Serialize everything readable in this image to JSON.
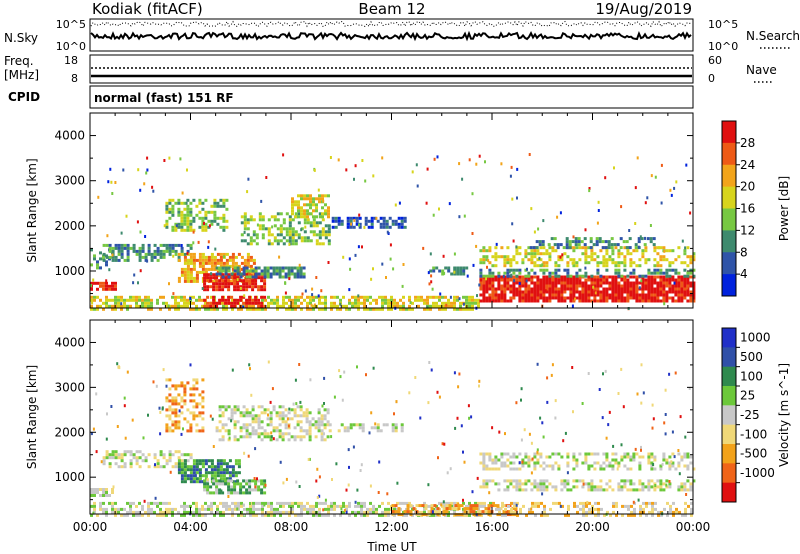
{
  "header": {
    "station": "Kodiak (fitACF)",
    "beam": "Beam 12",
    "date": "19/Aug/2019"
  },
  "strips": {
    "nsky_label": "N.Sky",
    "nsky_ticks": [
      "10^5",
      "10^0"
    ],
    "nsearch_label": "N.Search",
    "nsearch_ticks": [
      "10^5",
      "10^0"
    ],
    "freq_label_line1": "Freq.",
    "freq_label_line2": "[MHz]",
    "freq_ticks": [
      "18",
      "8"
    ],
    "nave_label": "Nave",
    "nave_ticks": [
      "60",
      "0"
    ],
    "cpid_label": "CPID",
    "cpid_text": "normal (fast) 151 RF"
  },
  "chart_data": [
    {
      "type": "heatmap",
      "name": "power",
      "ylabel": "Slant Range [km]",
      "xlabel": "",
      "x_ticks": [
        "00:00",
        "04:00",
        "08:00",
        "12:00",
        "16:00",
        "20:00",
        "00:00"
      ],
      "x_range_hours": [
        0,
        24
      ],
      "ylim": [
        180,
        4500
      ],
      "y_ticks": [
        1000,
        2000,
        3000,
        4000
      ],
      "colorbar_label": "Power [dB]",
      "colorbar_ticks": [
        "28",
        "24",
        "20",
        "16",
        "12",
        "8",
        "4"
      ],
      "colorbar_colors": [
        "#0022dd",
        "#2f54a8",
        "#3e8a6e",
        "#77c842",
        "#d7d41c",
        "#f2a41a",
        "#ee5a16",
        "#e01010"
      ],
      "echo_regions": [
        {
          "t": [
            0.0,
            1.0
          ],
          "r": [
            580,
            760
          ],
          "level": 7,
          "fill": 0.8
        },
        {
          "t": [
            0.0,
            1.0
          ],
          "r": [
            1100,
            1500
          ],
          "level": 2,
          "fill": 0.35
        },
        {
          "t": [
            0.5,
            4.0
          ],
          "r": [
            1250,
            1600
          ],
          "level": 2,
          "fill": 0.6
        },
        {
          "t": [
            3.0,
            5.5
          ],
          "r": [
            1900,
            2600
          ],
          "level": 3,
          "fill": 0.55
        },
        {
          "t": [
            3.5,
            6.5
          ],
          "r": [
            800,
            1400
          ],
          "level": 5,
          "fill": 0.75
        },
        {
          "t": [
            4.5,
            7.0
          ],
          "r": [
            600,
            950
          ],
          "level": 7,
          "fill": 0.8
        },
        {
          "t": [
            5.0,
            8.5
          ],
          "r": [
            900,
            1100
          ],
          "level": 2,
          "fill": 0.7
        },
        {
          "t": [
            6.0,
            9.5
          ],
          "r": [
            1600,
            2300
          ],
          "level": 3,
          "fill": 0.5
        },
        {
          "t": [
            8.0,
            9.5
          ],
          "r": [
            2200,
            2700
          ],
          "level": 4,
          "fill": 0.6
        },
        {
          "t": [
            9.5,
            12.5
          ],
          "r": [
            2000,
            2200
          ],
          "level": 1,
          "fill": 0.6
        },
        {
          "t": [
            0.0,
            15.5
          ],
          "r": [
            180,
            450
          ],
          "level": 4,
          "fill": 0.6
        },
        {
          "t": [
            4.5,
            7.0
          ],
          "r": [
            250,
            450
          ],
          "level": 7,
          "fill": 0.7
        },
        {
          "t": [
            13.5,
            15.0
          ],
          "r": [
            950,
            1100
          ],
          "level": 2,
          "fill": 0.6
        },
        {
          "t": [
            15.5,
            24.0
          ],
          "r": [
            350,
            900
          ],
          "level": 7,
          "fill": 0.9
        },
        {
          "t": [
            15.5,
            24.0
          ],
          "r": [
            900,
            1050
          ],
          "level": 2,
          "fill": 0.45
        },
        {
          "t": [
            15.5,
            24.0
          ],
          "r": [
            1150,
            1550
          ],
          "level": 4,
          "fill": 0.45
        },
        {
          "t": [
            17.5,
            22.5
          ],
          "r": [
            1550,
            1750
          ],
          "level": 2,
          "fill": 0.4
        }
      ]
    },
    {
      "type": "heatmap",
      "name": "velocity",
      "ylabel": "Slant Range [km]",
      "xlabel": "Time UT",
      "x_ticks": [
        "00:00",
        "04:00",
        "08:00",
        "12:00",
        "16:00",
        "20:00",
        "00:00"
      ],
      "x_range_hours": [
        0,
        24
      ],
      "ylim": [
        180,
        4500
      ],
      "y_ticks": [
        1000,
        2000,
        3000,
        4000
      ],
      "colorbar_label": "Velocity [m s^-1]",
      "colorbar_ticks": [
        "1000",
        "500",
        "100",
        "25",
        "-25",
        "-100",
        "-500",
        "-1000"
      ],
      "colorbar_colors": [
        "#e01010",
        "#f06418",
        "#f2a21a",
        "#f0d878",
        "#c8c8c8",
        "#6cc83a",
        "#2f8a4e",
        "#3050a8",
        "#2030c8"
      ],
      "echo_regions": [
        {
          "t": [
            0.0,
            1.0
          ],
          "r": [
            580,
            760
          ],
          "level": 4,
          "fill": 0.8
        },
        {
          "t": [
            0.5,
            4.0
          ],
          "r": [
            1250,
            1600
          ],
          "level": 4,
          "fill": 0.5
        },
        {
          "t": [
            3.0,
            4.5
          ],
          "r": [
            2000,
            3200
          ],
          "level": 2,
          "fill": 0.4
        },
        {
          "t": [
            3.5,
            6.0
          ],
          "r": [
            900,
            1400
          ],
          "level": 6,
          "fill": 0.75
        },
        {
          "t": [
            4.5,
            7.0
          ],
          "r": [
            650,
            950
          ],
          "level": 5,
          "fill": 0.7
        },
        {
          "t": [
            5.0,
            9.5
          ],
          "r": [
            1800,
            2600
          ],
          "level": 4,
          "fill": 0.5
        },
        {
          "t": [
            9.5,
            12.5
          ],
          "r": [
            2000,
            2200
          ],
          "level": 4,
          "fill": 0.5
        },
        {
          "t": [
            0.0,
            16.0
          ],
          "r": [
            180,
            450
          ],
          "level": 4,
          "fill": 0.6
        },
        {
          "t": [
            12.0,
            17.0
          ],
          "r": [
            180,
            400
          ],
          "level": 2,
          "fill": 0.55
        },
        {
          "t": [
            15.5,
            24.0
          ],
          "r": [
            700,
            950
          ],
          "level": 4,
          "fill": 0.5
        },
        {
          "t": [
            15.5,
            24.0
          ],
          "r": [
            1150,
            1550
          ],
          "level": 4,
          "fill": 0.45
        },
        {
          "t": [
            16.0,
            24.0
          ],
          "r": [
            180,
            450
          ],
          "level": 3,
          "fill": 0.4
        }
      ]
    }
  ],
  "colors": {
    "axis": "#000000",
    "background": "#ffffff"
  }
}
